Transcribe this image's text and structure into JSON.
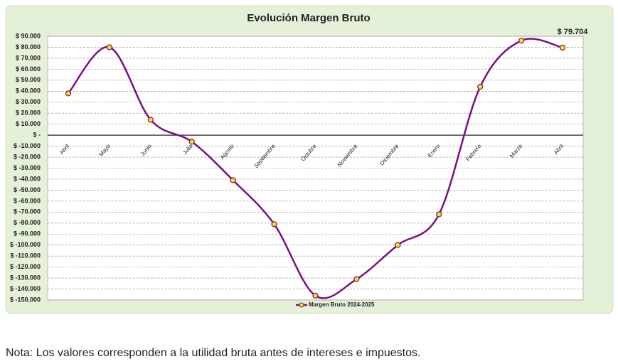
{
  "chart_data": {
    "type": "line",
    "title": "Evolución Margen Bruto",
    "categories": [
      "Abril",
      "Mayo",
      "Junio",
      "Julio",
      "Agosto",
      "Septiembre",
      "Octubre",
      "Noviembre",
      "Diciembre",
      "Enero",
      "Febrero",
      "Marzo",
      "Abril"
    ],
    "series": [
      {
        "name": "Margen Bruto 2024-2025",
        "color": "#7b0f82",
        "marker_color": "#f5e900",
        "values": [
          38000,
          80000,
          14000,
          -6000,
          -41000,
          -81000,
          -146000,
          -131000,
          -100000,
          -72000,
          44000,
          86000,
          79704
        ],
        "value_labels": [
          null,
          null,
          null,
          null,
          null,
          null,
          null,
          null,
          null,
          null,
          null,
          null,
          "$ 79.704"
        ]
      }
    ],
    "ylim": [
      -150000,
      90000
    ],
    "yticks": [
      {
        "value": 90000,
        "label": "$ 90.000"
      },
      {
        "value": 80000,
        "label": "$ 80.000"
      },
      {
        "value": 70000,
        "label": "$ 70.000"
      },
      {
        "value": 60000,
        "label": "$ 60.000"
      },
      {
        "value": 50000,
        "label": "$ 50.000"
      },
      {
        "value": 40000,
        "label": "$ 40.000"
      },
      {
        "value": 30000,
        "label": "$ 30.000"
      },
      {
        "value": 20000,
        "label": "$ 20.000"
      },
      {
        "value": 10000,
        "label": "$ 10.000"
      },
      {
        "value": 0,
        "label": "$ -"
      },
      {
        "value": -10000,
        "label": "$ -10.000"
      },
      {
        "value": -20000,
        "label": "$ -20.000"
      },
      {
        "value": -30000,
        "label": "$ -30.000"
      },
      {
        "value": -40000,
        "label": "$ -40.000"
      },
      {
        "value": -50000,
        "label": "$ -50.000"
      },
      {
        "value": -60000,
        "label": "$ -60.000"
      },
      {
        "value": -70000,
        "label": "$ -70.000"
      },
      {
        "value": -80000,
        "label": "$ -80.000"
      },
      {
        "value": -90000,
        "label": "$ -90.000"
      },
      {
        "value": -100000,
        "label": "$ -100.000"
      },
      {
        "value": -110000,
        "label": "$ -110.000"
      },
      {
        "value": -120000,
        "label": "$ -120.000"
      },
      {
        "value": -130000,
        "label": "$ -130.000"
      },
      {
        "value": -140000,
        "label": "$ -140.000"
      },
      {
        "value": -150000,
        "label": "$ -150.000"
      }
    ],
    "grid": true,
    "legend": "bottom"
  },
  "note": "Nota: Los valores corresponden a la utilidad bruta antes de intereses e impuestos."
}
